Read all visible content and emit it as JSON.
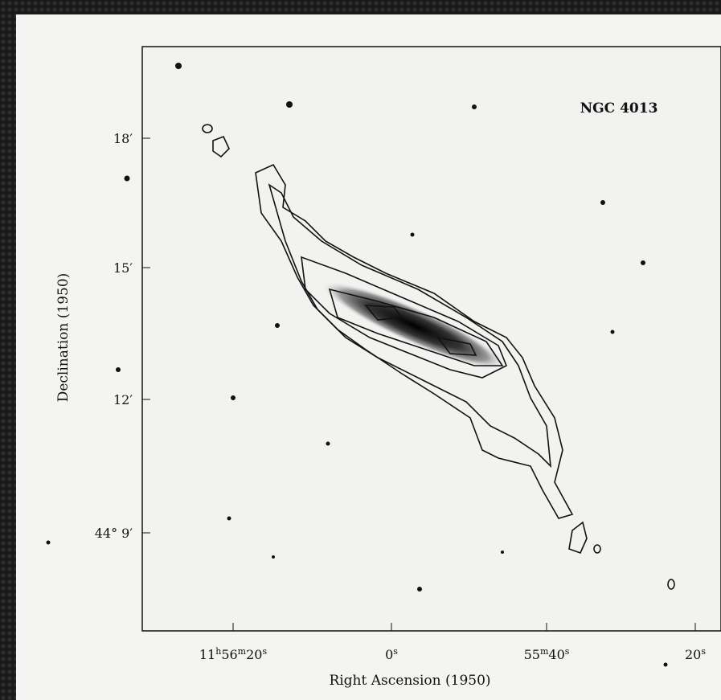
{
  "figure": {
    "object_label": "NGC 4013",
    "x_axis_label": "Right Ascension (1950)",
    "y_axis_label": "Declination (1950)",
    "x_tick_labels": [
      [
        "11",
        "h",
        "56",
        "m",
        "20",
        "s"
      ],
      [
        "0",
        "s"
      ],
      [
        "55",
        "m",
        "40",
        "s"
      ],
      [
        "20",
        "s"
      ]
    ],
    "y_tick_labels": [
      "18′",
      "15′",
      "12′",
      "44° 9′"
    ]
  }
}
